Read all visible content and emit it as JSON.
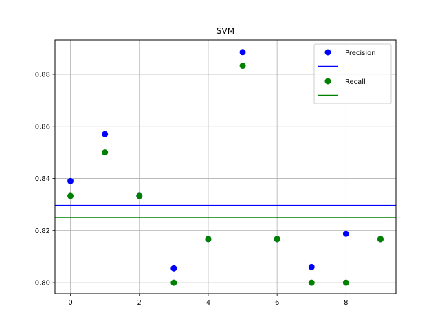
{
  "chart_data": {
    "type": "scatter",
    "title": "SVM",
    "xlabel": "",
    "ylabel": "",
    "xlim": [
      -0.45,
      9.45
    ],
    "ylim": [
      0.7958,
      0.8932
    ],
    "xticks": [
      0,
      2,
      4,
      6,
      8
    ],
    "yticks": [
      0.8,
      0.82,
      0.84,
      0.86,
      0.88
    ],
    "xtick_labels": [
      "0",
      "2",
      "4",
      "6",
      "8"
    ],
    "ytick_labels": [
      "0.80",
      "0.82",
      "0.84",
      "0.86",
      "0.88"
    ],
    "grid": true,
    "legend_position": "top-right",
    "x": [
      0,
      1,
      2,
      3,
      4,
      5,
      6,
      7,
      8,
      9
    ],
    "series": [
      {
        "name": "Precision",
        "color": "#0000ff",
        "values": [
          0.839,
          0.857,
          0.8333,
          0.8055,
          0.8167,
          0.8885,
          0.8167,
          0.806,
          0.8187,
          0.8167
        ],
        "mean_line": 0.8297
      },
      {
        "name": "Recall",
        "color": "#008000",
        "values": [
          0.8333,
          0.85,
          0.8333,
          0.8,
          0.8167,
          0.8833,
          0.8167,
          0.8,
          0.8,
          0.8167
        ],
        "mean_line": 0.8251
      }
    ]
  }
}
